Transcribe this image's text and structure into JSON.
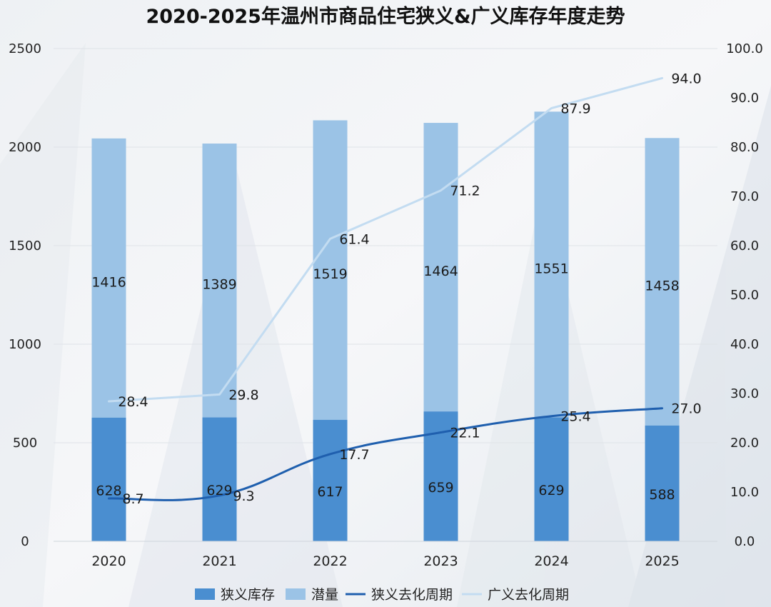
{
  "chart_data": {
    "type": "bar",
    "title": "2020-2025年温州市商品住宅狭义&广义库存年度走势",
    "categories": [
      "2020",
      "2021",
      "2022",
      "2023",
      "2024",
      "2025"
    ],
    "series": [
      {
        "name": "狭义库存",
        "kind": "bar",
        "stack": "inventory",
        "axis": "left",
        "values": [
          628,
          629,
          617,
          659,
          629,
          588
        ]
      },
      {
        "name": "潜量",
        "kind": "bar",
        "stack": "inventory",
        "axis": "left",
        "values": [
          1416,
          1389,
          1519,
          1464,
          1551,
          1458
        ]
      },
      {
        "name": "狭义去化周期",
        "kind": "line",
        "axis": "right",
        "values": [
          8.7,
          9.3,
          17.7,
          22.1,
          25.4,
          27.0
        ]
      },
      {
        "name": "广义去化周期",
        "kind": "line",
        "axis": "right",
        "values": [
          28.4,
          29.8,
          61.4,
          71.2,
          87.9,
          94.0
        ]
      }
    ],
    "ylim_left": [
      0,
      2500
    ],
    "yticks_left": [
      "0",
      "500",
      "1000",
      "1500",
      "2000",
      "2500"
    ],
    "ylim_right": [
      0,
      100
    ],
    "yticks_right": [
      "0.0",
      "10.0",
      "20.0",
      "30.0",
      "40.0",
      "50.0",
      "60.0",
      "70.0",
      "80.0",
      "90.0",
      "100.0"
    ],
    "grid": true,
    "legend_position": "bottom",
    "colors": {
      "narrow_inventory": "#4a8ed0",
      "potential": "#9bc3e6",
      "narrow_cycle": "#1f5fae",
      "broad_cycle": "#c3dcf1"
    }
  }
}
